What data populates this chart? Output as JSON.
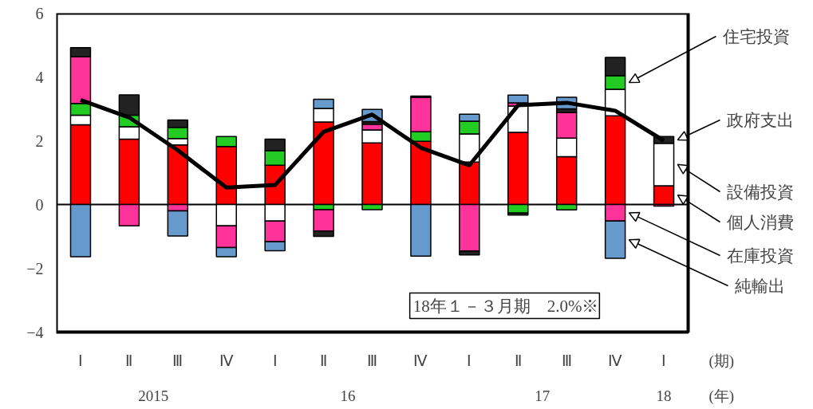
{
  "chart_data": {
    "type": "bar",
    "stacked": true,
    "categories": [
      "Ⅰ",
      "Ⅱ",
      "Ⅲ",
      "Ⅳ",
      "Ⅰ",
      "Ⅱ",
      "Ⅲ",
      "Ⅳ",
      "Ⅰ",
      "Ⅱ",
      "Ⅲ",
      "Ⅳ",
      "Ⅰ"
    ],
    "xlabel": "(期)",
    "ylim": [
      -4,
      6
    ],
    "yticks": [
      {
        "value": -4,
        "label": "−4"
      },
      {
        "value": -2,
        "label": "−2"
      },
      0,
      2,
      4,
      6
    ],
    "grid": false,
    "legend": "right",
    "series": [
      {
        "name": "個人消費",
        "color": "#ff0000",
        "values": [
          2.5,
          2.05,
          1.87,
          1.82,
          1.23,
          2.59,
          1.93,
          1.98,
          1.33,
          2.26,
          1.5,
          2.78,
          0.59
        ]
      },
      {
        "name": "設備投資",
        "color": "#ffffff",
        "values": [
          0.3,
          0.39,
          0.2,
          -0.67,
          -0.52,
          0.42,
          0.41,
          null,
          0.88,
          0.83,
          0.58,
          0.83,
          1.33
        ]
      },
      {
        "name": "住宅投資",
        "color": "#22cc22",
        "values": [
          0.37,
          0.36,
          0.35,
          0.31,
          0.46,
          -0.16,
          -0.16,
          0.3,
          0.4,
          -0.27,
          -0.17,
          0.43,
          null
        ]
      },
      {
        "name": "在庫投資",
        "color": "#ff3399",
        "values": [
          1.46,
          -0.67,
          -0.2,
          -0.68,
          -0.65,
          -0.67,
          0.18,
          1.08,
          -1.46,
          0.1,
          0.8,
          -0.52,
          -0.05
        ]
      },
      {
        "name": "政府支出",
        "color": "#222222",
        "values": [
          0.29,
          0.64,
          0.23,
          null,
          0.36,
          -0.17,
          0.08,
          0.04,
          -0.12,
          -0.06,
          0.12,
          0.57,
          0.21
        ]
      },
      {
        "name": "純輸出",
        "color": "#6699cc",
        "values": [
          -1.64,
          null,
          -0.79,
          -0.29,
          -0.28,
          0.29,
          0.38,
          -1.62,
          0.22,
          0.24,
          0.36,
          -1.17,
          null
        ]
      },
      {
        "type": "line",
        "color": "#000000",
        "marker": "none",
        "line_style": "solid",
        "values": [
          3.28,
          2.73,
          1.7,
          0.53,
          0.61,
          2.28,
          2.82,
          1.78,
          1.23,
          3.11,
          3.19,
          2.94,
          2.0
        ]
      }
    ],
    "ref_lines": [
      {
        "axis": "y",
        "value": 0
      }
    ],
    "annotations": [
      "2015",
      "16",
      "17",
      "18",
      "(年)",
      "18年１－３月期　2.0%※"
    ]
  }
}
